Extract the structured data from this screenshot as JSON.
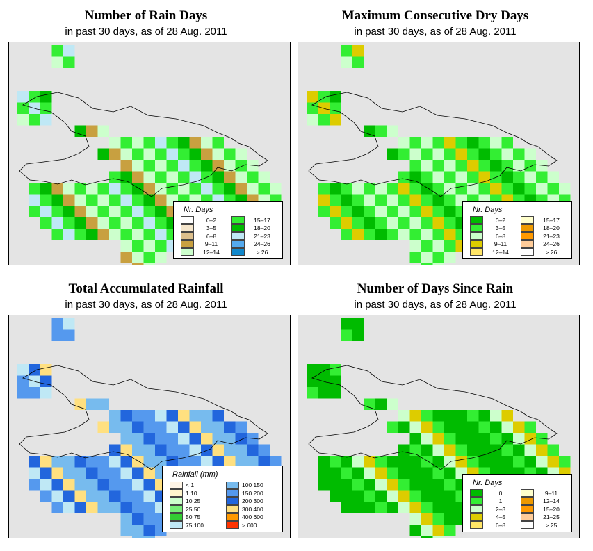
{
  "panels": [
    {
      "title": "Number of Rain Days",
      "subtitle": "in past 30 days, as of  28 Aug. 2011",
      "legend": {
        "title": "Nr. Days",
        "items": [
          {
            "label": "0–2",
            "color": "#ffffff"
          },
          {
            "label": "3–5",
            "color": "#f5e6cc"
          },
          {
            "label": "6–8",
            "color": "#dcbf8c"
          },
          {
            "label": "9–11",
            "color": "#c8a040"
          },
          {
            "label": "12–14",
            "color": "#ccffcc"
          },
          {
            "label": "15–17",
            "color": "#33ee33"
          },
          {
            "label": "18–20",
            "color": "#00bb00"
          },
          {
            "label": "21–23",
            "color": "#bfe8f5"
          },
          {
            "label": "24–26",
            "color": "#55aaee"
          },
          {
            "label": "> 26",
            "color": "#1188cc"
          }
        ]
      }
    },
    {
      "title": "Maximum Consecutive Dry Days",
      "subtitle": "in past 30 days, as of  28 Aug. 2011",
      "legend": {
        "title": "Nr. Days",
        "items": [
          {
            "label": "0–2",
            "color": "#00bb00"
          },
          {
            "label": "3–5",
            "color": "#33ee33"
          },
          {
            "label": "6–8",
            "color": "#ccffcc"
          },
          {
            "label": "9–11",
            "color": "#ddcc00"
          },
          {
            "label": "12–14",
            "color": "#ffe566"
          },
          {
            "label": "15–17",
            "color": "#ffffcc"
          },
          {
            "label": "18–20",
            "color": "#ee9900"
          },
          {
            "label": "21–23",
            "color": "#ff9900"
          },
          {
            "label": "24–26",
            "color": "#ffcc99"
          },
          {
            "label": "> 26",
            "color": "#ffffff"
          }
        ]
      }
    },
    {
      "title": "Total Accumulated Rainfall",
      "subtitle": "in past 30 days, as of  28 Aug. 2011",
      "legend": {
        "title": "Rainfall (mm)",
        "items": [
          {
            "label": "< 1",
            "color": "#fff5e6"
          },
          {
            "label": "1     10",
            "color": "#fff5cc"
          },
          {
            "label": "10     25",
            "color": "#ccffcc"
          },
          {
            "label": "25     50",
            "color": "#77ee77"
          },
          {
            "label": "50     75",
            "color": "#33cc33"
          },
          {
            "label": "75   100",
            "color": "#bfe8f5"
          },
          {
            "label": "100   150",
            "color": "#77bbee"
          },
          {
            "label": "150   200",
            "color": "#5599ee"
          },
          {
            "label": "200   300",
            "color": "#2266dd"
          },
          {
            "label": "300   400",
            "color": "#ffe080"
          },
          {
            "label": "400   600",
            "color": "#ff9900"
          },
          {
            "label": "> 600",
            "color": "#ff3300"
          }
        ]
      }
    },
    {
      "title": "Number of Days Since Rain",
      "subtitle": "in past 30 days, as of  28 Aug. 2011",
      "legend": {
        "title": "Nr. Days",
        "items": [
          {
            "label": "0",
            "color": "#00bb00"
          },
          {
            "label": "1",
            "color": "#33ee33"
          },
          {
            "label": "2–3",
            "color": "#ccffcc"
          },
          {
            "label": "4–5",
            "color": "#ddcc00"
          },
          {
            "label": "6–8",
            "color": "#ffe566"
          },
          {
            "label": "9–11",
            "color": "#ffffcc"
          },
          {
            "label": "12–14",
            "color": "#ee9900"
          },
          {
            "label": "15–20",
            "color": "#ff9900"
          },
          {
            "label": "21–25",
            "color": "#ffcc99"
          },
          {
            "label": "> 25",
            "color": "#ffffff"
          }
        ]
      }
    }
  ]
}
